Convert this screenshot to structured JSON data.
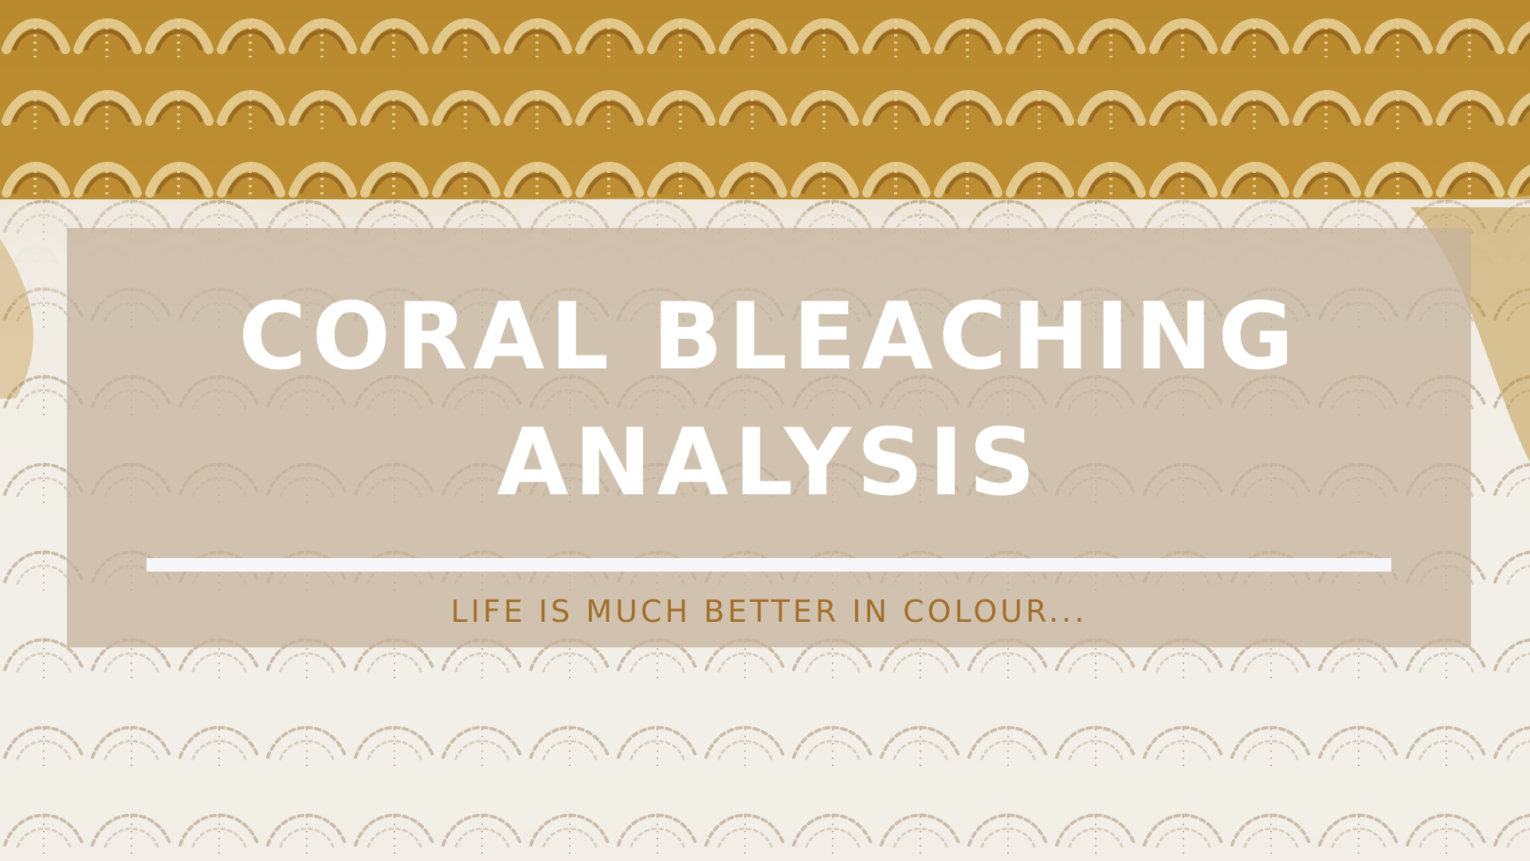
{
  "slide": {
    "title_lines": [
      "CORAL BLEACHING",
      "ANALYSIS"
    ],
    "tagline": "LIFE IS MUCH BETTER IN COLOUR..."
  },
  "background": {
    "description_icon": "coral-texture",
    "healthy_coral_color": "#b98a2d",
    "bleached_coral_color": "#f2efe8"
  },
  "colors": {
    "panel": "#c4b29b",
    "title_text": "#ffffff",
    "divider": "#f5f7fb",
    "tagline_text": "#a36f2a"
  }
}
